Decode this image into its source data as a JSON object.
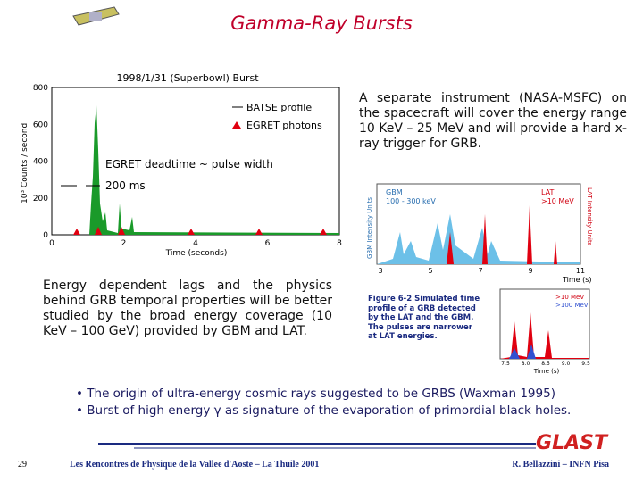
{
  "header": {
    "title": "Gamma-Ray Bursts"
  },
  "figure1": {
    "title": "1998/1/31 (Superbowl) Burst",
    "ylabel": "10³ Counts / second",
    "xlabel": "Time (seconds)",
    "yticks": [
      "0",
      "200",
      "400",
      "600",
      "800"
    ],
    "xticks": [
      "0",
      "2",
      "4",
      "6",
      "8"
    ],
    "legend": [
      "BATSE profile",
      "EGRET photons"
    ],
    "annotations": [
      "EGRET deadtime ~ pulse width",
      "200 ms"
    ]
  },
  "right_text": "A separate instrument (NASA-MSFC) on the spacecraft will cover the energy range 10 KeV – 25 MeV and will provide a hard x-ray trigger for GRB.",
  "figure2": {
    "labels": [
      "GBM",
      "100 - 300 keV",
      "LAT",
      ">10 MeV"
    ],
    "ylabel_left": "GBM Intensity Units",
    "ylabel_right": "LAT Intensity Units",
    "xticks": [
      "3",
      "5",
      "7",
      "9",
      "11"
    ],
    "xlabel": "Time (s)"
  },
  "left_text": "Energy dependent lags and the physics behind GRB temporal properties will be better studied by the broad energy coverage (10 KeV – 100 GeV) provided by GBM and LAT.",
  "figure3": {
    "caption": "Figure 6-2 Simulated time profile of a GRB detected by the LAT and the GBM. The pulses are narrower at LAT energies.",
    "legend": [
      ">10 MeV",
      ">100 MeV"
    ],
    "xticks": [
      "7.5",
      "8.0",
      "8.5",
      "9.0",
      "9.5"
    ],
    "xlabel": "Time (s)"
  },
  "bullets": [
    "The origin of ultra-energy cosmic rays suggested to be GRBS (Waxman 1995)",
    "Burst of high energy γ as signature of the evaporation of primordial black holes."
  ],
  "footer": {
    "page": "29",
    "conference": "Les Rencontres de Physique de la Vallee d'Aoste – La Thuile 2001",
    "logo": "GLAST",
    "author": "R. Bellazzini – INFN Pisa"
  }
}
